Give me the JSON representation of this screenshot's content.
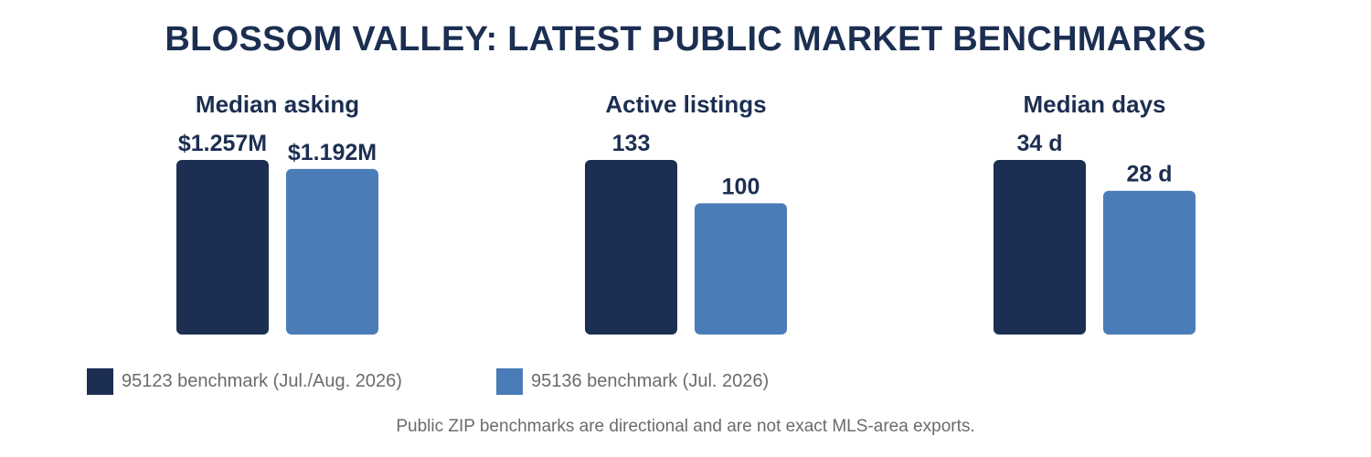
{
  "title": "BLOSSOM VALLEY: LATEST PUBLIC MARKET BENCHMARKS",
  "footnote": "Public ZIP benchmarks are directional and are not exact MLS-area exports.",
  "colors": {
    "series_a": "#1c2f52",
    "series_b": "#4a7db8",
    "text": "#1c2f52",
    "muted": "#6b6b6b"
  },
  "legend": [
    {
      "label": "95123 benchmark (Jul./Aug. 2026)",
      "color": "#1c2f52"
    },
    {
      "label": "95136 benchmark (Jul. 2026)",
      "color": "#4a7db8"
    }
  ],
  "chart_data": [
    {
      "type": "bar",
      "title": "Median asking",
      "series": [
        {
          "name": "95123 benchmark (Jul./Aug. 2026)",
          "value": 1.257,
          "label": "$1.257M"
        },
        {
          "name": "95136 benchmark (Jul. 2026)",
          "value": 1.192,
          "label": "$1.192M"
        }
      ],
      "ylim": [
        0,
        1.257
      ]
    },
    {
      "type": "bar",
      "title": "Active listings",
      "series": [
        {
          "name": "95123 benchmark (Jul./Aug. 2026)",
          "value": 133,
          "label": "133"
        },
        {
          "name": "95136 benchmark (Jul. 2026)",
          "value": 100,
          "label": "100"
        }
      ],
      "ylim": [
        0,
        133
      ]
    },
    {
      "type": "bar",
      "title": "Median days",
      "series": [
        {
          "name": "95123 benchmark (Jul./Aug. 2026)",
          "value": 34,
          "label": "34 d"
        },
        {
          "name": "95136 benchmark (Jul. 2026)",
          "value": 28,
          "label": "28 d"
        }
      ],
      "ylim": [
        0,
        34
      ]
    }
  ]
}
